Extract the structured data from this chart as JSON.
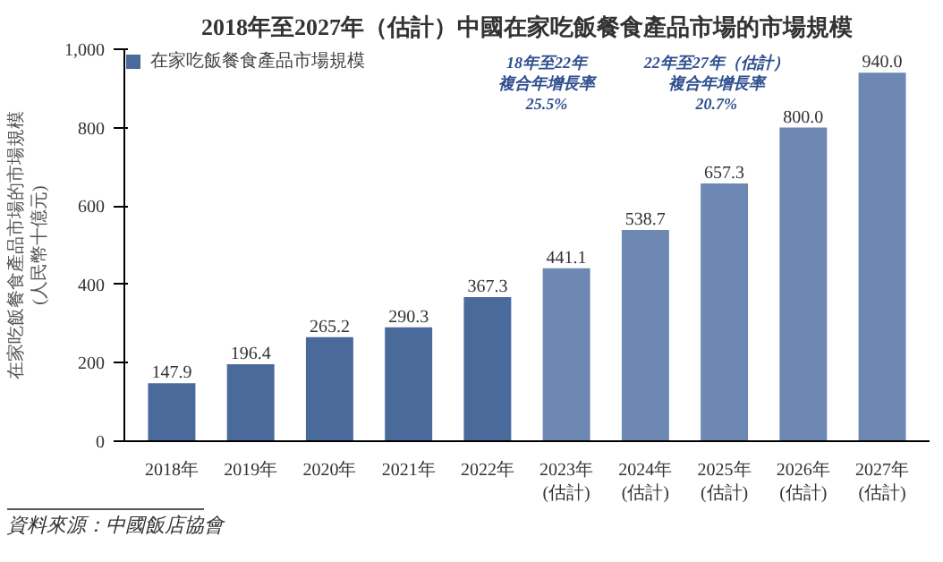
{
  "chart_data": {
    "type": "bar",
    "title": "2018年至2027年（估計）中國在家吃飯餐食產品市場的市場規模",
    "ylabel": "在家吃飯餐食產品市場的市場規模\n(人民幣十億元)",
    "categories": [
      "2018年",
      "2019年",
      "2020年",
      "2021年",
      "2022年",
      "2023年\n(估計)",
      "2024年\n(估計)",
      "2025年\n(估計)",
      "2026年\n(估計)",
      "2027年\n(估計)"
    ],
    "series": [
      {
        "name": "在家吃飯餐食產品市場規模",
        "colors": [
          "#4a6a9c",
          "#4a6a9c",
          "#4a6a9c",
          "#4a6a9c",
          "#4a6a9c",
          "#6d88b3",
          "#6d88b3",
          "#6d88b3",
          "#6d88b3",
          "#6d88b3"
        ],
        "values": [
          147.9,
          196.4,
          265.2,
          290.3,
          367.3,
          441.1,
          538.7,
          657.3,
          800.0,
          940.0
        ]
      }
    ],
    "value_labels": [
      "147.9",
      "196.4",
      "265.2",
      "290.3",
      "367.3",
      "441.1",
      "538.7",
      "657.3",
      "800.0",
      "940.0"
    ],
    "ylim": [
      0,
      1000
    ],
    "yticks": [
      0,
      200,
      400,
      600,
      800,
      {
        "value": 1000,
        "label": "1,000"
      }
    ],
    "annotations": [
      "18年至22年",
      "複合年增長率",
      "25.5%",
      "22年至27年（估計）",
      "複合年增長率",
      "20.7%",
      "資料來源：中國飯店協會"
    ],
    "grid": false,
    "legend": "top left"
  }
}
